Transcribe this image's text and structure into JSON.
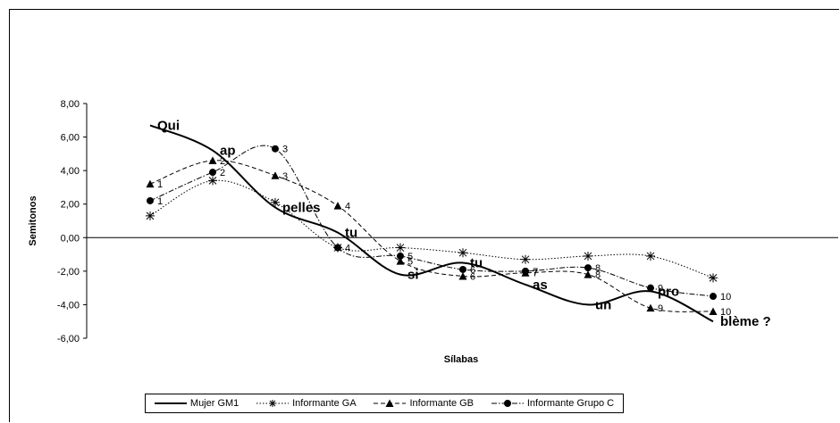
{
  "chart_data": {
    "type": "line",
    "title": "",
    "xlabel": "Sílabas",
    "ylabel": "Semitonos",
    "ylim": [
      -6,
      8
    ],
    "yticks": [
      "8,00",
      "6,00",
      "4,00",
      "2,00",
      "0,00",
      "-2,00",
      "-4,00",
      "-6,00"
    ],
    "grid": false,
    "legend_position": "bottom",
    "series": [
      {
        "name": "Mujer GM1",
        "style": "solid",
        "x": [
          1,
          2,
          3,
          4,
          5,
          6,
          7,
          8,
          9,
          10
        ],
        "y": [
          6.7,
          5.2,
          1.8,
          0.3,
          -2.2,
          -1.5,
          -2.8,
          -4.0,
          -3.2,
          -5.0
        ],
        "syllables": [
          "Qui",
          "ap",
          "pelles",
          "tu",
          "si",
          "tu",
          "as",
          "un",
          "pro",
          "blème ?"
        ]
      },
      {
        "name": "Informante GA",
        "style": "dotted",
        "marker": "asterisk",
        "x": [
          1,
          2,
          3,
          4,
          5,
          6,
          7,
          8,
          9,
          10
        ],
        "y": [
          1.3,
          3.4,
          2.1,
          -0.6,
          -0.6,
          -0.9,
          -1.3,
          -1.1,
          -1.1,
          -2.4
        ],
        "labels": [
          "",
          "",
          "",
          "",
          "",
          "",
          "",
          "",
          "",
          ""
        ]
      },
      {
        "name": "Informante GB",
        "style": "dashed",
        "marker": "triangle",
        "x": [
          1,
          2,
          3,
          4,
          5,
          6,
          7,
          8,
          9,
          10
        ],
        "y": [
          3.2,
          4.6,
          3.7,
          1.9,
          -1.4,
          -2.3,
          -2.1,
          -2.2,
          -4.2,
          -4.4
        ],
        "labels": [
          "1",
          "2",
          "3",
          "4",
          "5",
          "6",
          "7",
          "8",
          "9",
          "10"
        ]
      },
      {
        "name": "Informante Grupo C",
        "style": "dashdot",
        "marker": "circle",
        "x": [
          1,
          2,
          3,
          4,
          5,
          6,
          7,
          8,
          9,
          10
        ],
        "y": [
          2.2,
          3.9,
          5.3,
          -0.6,
          -1.1,
          -1.9,
          -2.0,
          -1.8,
          -3.0,
          -3.5
        ],
        "labels": [
          "1",
          "2",
          "3",
          "4",
          "5",
          "6",
          "7",
          "8",
          "9",
          "10"
        ]
      }
    ]
  }
}
